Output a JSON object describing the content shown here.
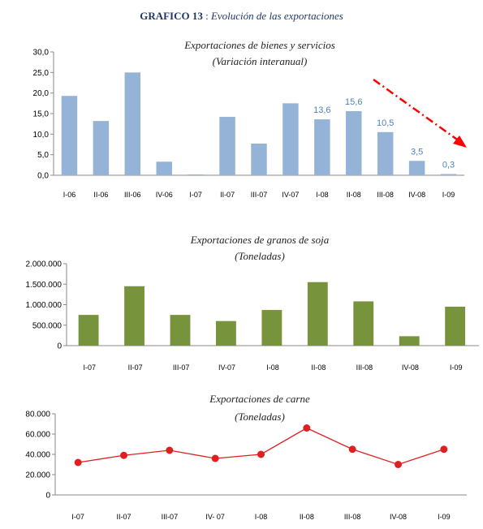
{
  "page_title": {
    "strong": "GRAFICO 13",
    "sep": " : ",
    "italic": "Evolución de las exportaciones"
  },
  "colors": {
    "blue_bar": "#95b3d7",
    "green_bar": "#77933c",
    "red_line": "#e02020",
    "trend_arrow": "#ff0000",
    "label_blue": "#4f81bd"
  },
  "chart_data": [
    {
      "type": "bar",
      "title": "Exportaciones de bienes y servicios",
      "subtitle": "(Variación interanual)",
      "categories": [
        "I-06",
        "II-06",
        "III-06",
        "IV-06",
        "I-07",
        "II-07",
        "III-07",
        "IV-07",
        "I-08",
        "II-08",
        "III-08",
        "IV-08",
        "I-09"
      ],
      "values": [
        19.3,
        13.2,
        25.0,
        3.3,
        0.2,
        14.2,
        7.7,
        17.5,
        13.6,
        15.6,
        10.5,
        3.5,
        0.3
      ],
      "data_labels": [
        "",
        "",
        "",
        "",
        "",
        "",
        "",
        "",
        "13,6",
        "15,6",
        "10,5",
        "3,5",
        "0,3"
      ],
      "yticks": [
        "0,0",
        "5,0",
        "10,0",
        "15,0",
        "20,0",
        "25,0",
        "30,0"
      ],
      "ylim": [
        0,
        30
      ],
      "annotation": "trend-arrow-down",
      "grid": false
    },
    {
      "type": "bar",
      "title": "Exportaciones de granos de soja",
      "subtitle": "(Toneladas)",
      "categories": [
        "I-07",
        "II-07",
        "III-07",
        "IV-07",
        "I-08",
        "II-08",
        "III-08",
        "IV-08",
        "I-09"
      ],
      "values": [
        750000,
        1450000,
        750000,
        600000,
        870000,
        1550000,
        1080000,
        230000,
        950000
      ],
      "yticks": [
        "0",
        "500.000",
        "1.000.000",
        "1.500.000",
        "2.000.000"
      ],
      "ylim": [
        0,
        2000000
      ],
      "grid": false
    },
    {
      "type": "line",
      "title": "Exportaciones de carne",
      "subtitle": "(Toneladas)",
      "categories": [
        "I-07",
        "II-07",
        "III-07",
        "IV- 07",
        "I-08",
        "II-08",
        "III-08",
        "IV-08",
        "I-09"
      ],
      "values": [
        32000,
        39000,
        44000,
        36000,
        40000,
        66000,
        45000,
        30000,
        45000
      ],
      "yticks": [
        "0",
        "20.000",
        "40.000",
        "60.000",
        "80.000"
      ],
      "ylim": [
        0,
        80000
      ],
      "grid": false
    }
  ]
}
